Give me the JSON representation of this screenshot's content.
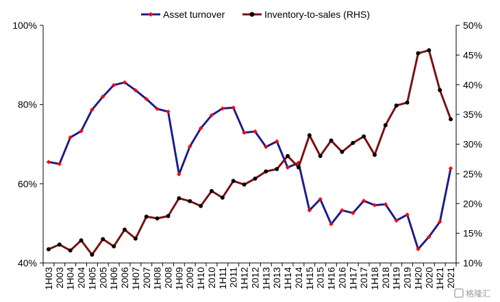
{
  "chart_data": {
    "type": "line",
    "title": "",
    "categories": [
      "1H03",
      "2003",
      "1H04",
      "2004",
      "1H05",
      "2005",
      "1H06",
      "2006",
      "1H07",
      "2007",
      "1H08",
      "2008",
      "1H09",
      "2009",
      "1H10",
      "2010",
      "1H11",
      "2011",
      "1H12",
      "2012",
      "1H13",
      "2013",
      "1H14",
      "2014",
      "1H15",
      "2015",
      "1H16",
      "2016",
      "1H17",
      "2017",
      "1H18",
      "2018",
      "1H19",
      "2019",
      "1H20",
      "2020",
      "1H21",
      "2021"
    ],
    "left_axis": {
      "min": 40,
      "max": 100,
      "ticks": [
        40,
        60,
        80,
        100
      ],
      "tick_labels": [
        "40%",
        "60%",
        "80%",
        "100%"
      ]
    },
    "right_axis": {
      "min": 10,
      "max": 50,
      "ticks": [
        10,
        15,
        20,
        25,
        30,
        35,
        40,
        45,
        50
      ],
      "tick_labels": [
        "10%",
        "15%",
        "20%",
        "25%",
        "30%",
        "35%",
        "40%",
        "45%",
        "50%"
      ]
    },
    "legend_position": "top",
    "grid": false,
    "series": [
      {
        "name": "Asset turnover",
        "axis": "left",
        "line_color": "#1c1c8c",
        "marker_color": "#ff0000",
        "values": [
          65.5,
          65,
          71.7,
          73.3,
          78.7,
          82,
          84.9,
          85.6,
          83.6,
          81.4,
          78.9,
          78.2,
          62.4,
          69.4,
          74,
          77.3,
          79,
          79.2,
          72.9,
          73.2,
          69.3,
          70.7,
          64.1,
          65.3,
          53.3,
          56.1,
          49.8,
          53.3,
          52.6,
          55.7,
          54.6,
          54.8,
          50.7,
          52.2,
          43.5,
          46.6,
          50.4,
          63.9
        ]
      },
      {
        "name": "Inventory-to-sales (RHS)",
        "axis": "right",
        "line_color": "#7b0f0f",
        "marker_color": "#000000",
        "values": [
          12.3,
          13.1,
          12.1,
          13.8,
          11.4,
          14,
          12.8,
          15.6,
          14.1,
          17.8,
          17.5,
          17.9,
          20.9,
          20.4,
          19.6,
          22.1,
          21,
          23.8,
          23.2,
          24.2,
          25.4,
          25.8,
          28,
          26.1,
          31.5,
          28,
          30.6,
          28.7,
          30.2,
          31.3,
          28.2,
          33.2,
          36.5,
          37,
          45.3,
          45.8,
          39.1,
          34.2
        ]
      }
    ],
    "watermark": "格隆汇"
  }
}
